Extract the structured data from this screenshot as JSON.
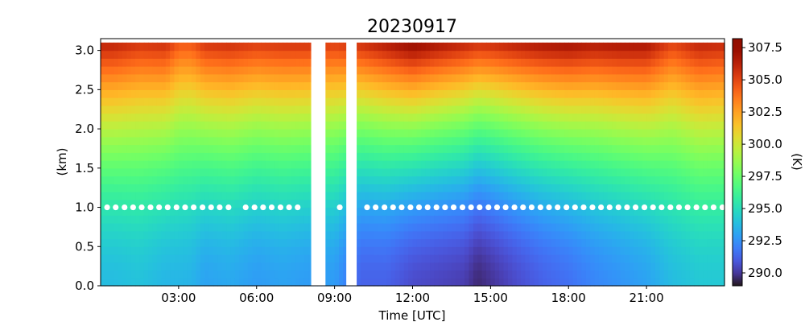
{
  "chart_data": {
    "type": "heatmap",
    "title": "20230917",
    "xlabel": "Time [UTC]",
    "ylabel": "(km)",
    "xlim_hours": [
      0,
      24
    ],
    "ylim": [
      0,
      3.15
    ],
    "x_ticks": [
      {
        "value": 3,
        "label": "03:00"
      },
      {
        "value": 6,
        "label": "06:00"
      },
      {
        "value": 9,
        "label": "09:00"
      },
      {
        "value": 12,
        "label": "12:00"
      },
      {
        "value": 15,
        "label": "15:00"
      },
      {
        "value": 18,
        "label": "18:00"
      },
      {
        "value": 21,
        "label": "21:00"
      }
    ],
    "y_ticks": [
      {
        "value": 0.0,
        "label": "0.0"
      },
      {
        "value": 0.5,
        "label": "0.5"
      },
      {
        "value": 1.0,
        "label": "1.0"
      },
      {
        "value": 1.5,
        "label": "1.5"
      },
      {
        "value": 2.0,
        "label": "2.0"
      },
      {
        "value": 2.5,
        "label": "2.5"
      },
      {
        "value": 3.0,
        "label": "3.0"
      }
    ],
    "colorbar": {
      "label": "(K)",
      "range": [
        289.0,
        308.2
      ],
      "colormap": "turbo",
      "ticks": [
        {
          "value": 290.0,
          "label": "290.0"
        },
        {
          "value": 292.5,
          "label": "292.5"
        },
        {
          "value": 295.0,
          "label": "295.0"
        },
        {
          "value": 297.5,
          "label": "297.5"
        },
        {
          "value": 300.0,
          "label": "300.0"
        },
        {
          "value": 302.5,
          "label": "302.5"
        },
        {
          "value": 305.0,
          "label": "305.0"
        },
        {
          "value": 307.5,
          "label": "307.5"
        }
      ]
    },
    "missing_intervals_hours": [
      [
        8.1,
        8.65
      ],
      [
        9.45,
        9.85
      ]
    ],
    "marker_height_km": 1.0,
    "marker_times_hours": [
      0.25,
      0.58,
      0.92,
      1.25,
      1.58,
      1.92,
      2.25,
      2.58,
      2.92,
      3.25,
      3.58,
      3.92,
      4.25,
      4.58,
      4.92,
      5.58,
      5.92,
      6.25,
      6.58,
      6.92,
      7.25,
      7.58,
      9.2,
      10.25,
      10.58,
      10.92,
      11.25,
      11.58,
      11.92,
      12.25,
      12.58,
      12.92,
      13.25,
      13.58,
      13.92,
      14.25,
      14.58,
      14.92,
      15.25,
      15.58,
      15.92,
      16.25,
      16.58,
      16.92,
      17.25,
      17.58,
      17.92,
      18.25,
      18.58,
      18.92,
      19.25,
      19.58,
      19.92,
      20.25,
      20.58,
      20.92,
      21.25,
      21.58,
      21.92,
      22.25,
      22.58,
      22.92,
      23.25,
      23.58,
      23.92
    ],
    "heights_km": [
      0.05,
      0.15,
      0.25,
      0.35,
      0.45,
      0.55,
      0.65,
      0.75,
      0.85,
      0.95,
      1.05,
      1.15,
      1.25,
      1.35,
      1.45,
      1.55,
      1.65,
      1.75,
      1.85,
      1.95,
      2.05,
      2.15,
      2.25,
      2.35,
      2.45,
      2.55,
      2.65,
      2.75,
      2.85,
      2.95,
      3.05
    ],
    "profiles": [
      {
        "t": 0.5,
        "surface_k": 293.8,
        "top_k": 306.2
      },
      {
        "t": 1.5,
        "surface_k": 294.0,
        "top_k": 305.6
      },
      {
        "t": 2.5,
        "surface_k": 293.6,
        "top_k": 305.8
      },
      {
        "t": 3.0,
        "surface_k": 293.6,
        "top_k": 304.6
      },
      {
        "t": 3.5,
        "surface_k": 293.5,
        "top_k": 304.6
      },
      {
        "t": 4.0,
        "surface_k": 293.0,
        "top_k": 305.6
      },
      {
        "t": 5.0,
        "surface_k": 293.2,
        "top_k": 305.8
      },
      {
        "t": 6.0,
        "surface_k": 292.8,
        "top_k": 305.4
      },
      {
        "t": 7.0,
        "surface_k": 293.0,
        "top_k": 305.6
      },
      {
        "t": 8.0,
        "surface_k": 292.8,
        "top_k": 305.6
      },
      {
        "t": 9.0,
        "surface_k": 292.8,
        "top_k": 305.3
      },
      {
        "t": 10.0,
        "surface_k": 291.2,
        "top_k": 305.8
      },
      {
        "t": 11.0,
        "surface_k": 291.2,
        "top_k": 306.6
      },
      {
        "t": 12.0,
        "surface_k": 290.6,
        "top_k": 307.5
      },
      {
        "t": 13.0,
        "surface_k": 290.4,
        "top_k": 306.8
      },
      {
        "t": 14.0,
        "surface_k": 290.2,
        "top_k": 306.2
      },
      {
        "t": 14.5,
        "surface_k": 289.6,
        "top_k": 305.8
      },
      {
        "t": 15.0,
        "surface_k": 289.9,
        "top_k": 305.9
      },
      {
        "t": 16.0,
        "surface_k": 290.6,
        "top_k": 306.4
      },
      {
        "t": 17.0,
        "surface_k": 291.2,
        "top_k": 306.8
      },
      {
        "t": 18.0,
        "surface_k": 291.6,
        "top_k": 307.0
      },
      {
        "t": 19.0,
        "surface_k": 292.2,
        "top_k": 306.6
      },
      {
        "t": 20.0,
        "surface_k": 292.6,
        "top_k": 306.8
      },
      {
        "t": 21.0,
        "surface_k": 293.0,
        "top_k": 306.8
      },
      {
        "t": 22.0,
        "surface_k": 293.8,
        "top_k": 305.2
      },
      {
        "t": 23.0,
        "surface_k": 294.2,
        "top_k": 306.2
      },
      {
        "t": 24.0,
        "surface_k": 294.2,
        "top_k": 306.0
      }
    ]
  }
}
